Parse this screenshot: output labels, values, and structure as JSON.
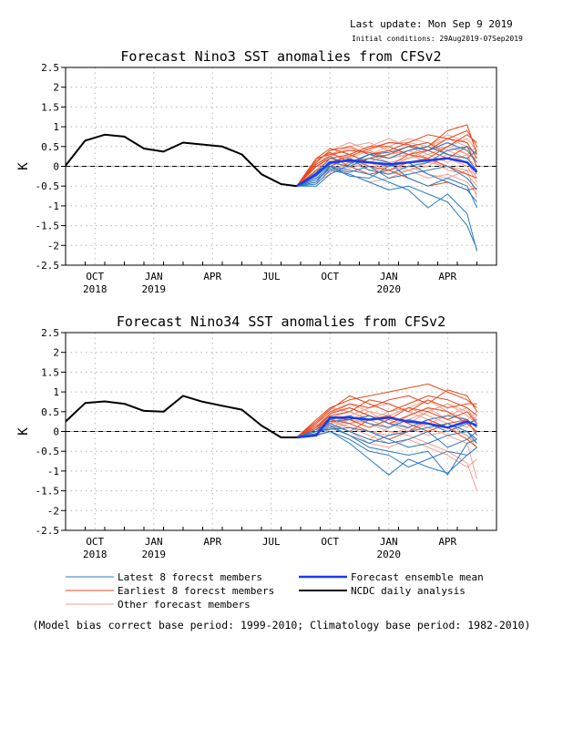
{
  "header": {
    "last_update": "Last update: Mon Sep 9 2019",
    "initial_conditions": "Initial conditions: 29Aug2019-07Sep2019"
  },
  "footer": {
    "note": "(Model bias correct base period: 1999-2010; Climatology base period: 1982-2010)"
  },
  "legend": {
    "items": [
      {
        "label": "Latest 8 forecst members",
        "color": "#2a7bc2"
      },
      {
        "label": "Earliest 8 forecst members",
        "color": "#e8491d"
      },
      {
        "label": "Other forecast members",
        "color": "#f0a090"
      },
      {
        "label": "Forecast ensemble mean",
        "color": "#1b3bf0"
      },
      {
        "label": "NCDC daily analysis",
        "color": "#000000"
      }
    ]
  },
  "chart_data": [
    {
      "type": "line",
      "title": "Forecast Nino3 SST anomalies from CFSv2",
      "ylabel": "K",
      "ylim": [
        -2.5,
        2.5
      ],
      "yticks": [
        "2.5",
        "2",
        "1.5",
        "1",
        "0.5",
        "0",
        "-0.5",
        "-1",
        "-1.5",
        "-2",
        "-2.5"
      ],
      "xlim": [
        0,
        22
      ],
      "xticks": [
        {
          "x": 1.5,
          "label": "OCT",
          "year": "2018"
        },
        {
          "x": 4.5,
          "label": "JAN",
          "year": "2019"
        },
        {
          "x": 7.5,
          "label": "APR",
          "year": ""
        },
        {
          "x": 10.5,
          "label": "JUL",
          "year": ""
        },
        {
          "x": 13.5,
          "label": "OCT",
          "year": ""
        },
        {
          "x": 16.5,
          "label": "JAN",
          "year": "2020"
        },
        {
          "x": 19.5,
          "label": "APR",
          "year": ""
        }
      ],
      "grid": true,
      "analysis": {
        "x": [
          0,
          1,
          2,
          3,
          4,
          5,
          6,
          7,
          8,
          9,
          10,
          11,
          11.8
        ],
        "y": [
          0.02,
          0.65,
          0.8,
          0.75,
          0.45,
          0.37,
          0.6,
          0.55,
          0.5,
          0.3,
          -0.2,
          -0.45,
          -0.5
        ]
      },
      "ensemble_mean": {
        "x": [
          11.8,
          12.8,
          13.5,
          14.5,
          15.5,
          16.5,
          17.5,
          18.5,
          19.5,
          20.5,
          21
        ],
        "y": [
          -0.5,
          -0.2,
          0.1,
          0.15,
          0.1,
          0.05,
          0.1,
          0.15,
          0.2,
          0.1,
          -0.15
        ]
      },
      "latest_members": {
        "x": [
          11.8,
          12.8,
          13.5,
          14.5,
          15.5,
          16.5,
          17.5,
          18.5,
          19.5,
          20.5,
          21
        ],
        "series": [
          [
            -0.5,
            -0.3,
            0.0,
            -0.1,
            -0.2,
            -0.4,
            -0.6,
            -1.05,
            -0.7,
            -1.2,
            -2.15
          ],
          [
            -0.5,
            -0.45,
            -0.1,
            -0.2,
            -0.4,
            -0.6,
            -0.5,
            -0.7,
            -0.9,
            -1.5,
            -2.1
          ],
          [
            -0.5,
            -0.2,
            0.1,
            0.0,
            0.2,
            0.1,
            -0.3,
            -0.5,
            -0.3,
            -0.5,
            -1.05
          ],
          [
            -0.5,
            -0.5,
            -0.2,
            0.05,
            0.3,
            0.2,
            0.4,
            0.5,
            0.3,
            0.2,
            -0.1
          ],
          [
            -0.5,
            -0.25,
            0.05,
            0.2,
            -0.1,
            -0.2,
            0.0,
            0.1,
            0.4,
            0.5,
            0.3
          ],
          [
            -0.5,
            -0.35,
            -0.05,
            -0.15,
            0.0,
            -0.3,
            -0.2,
            -0.1,
            0.0,
            -0.3,
            -0.6
          ],
          [
            -0.5,
            -0.15,
            0.2,
            0.1,
            0.3,
            0.35,
            0.5,
            0.4,
            0.6,
            0.4,
            0.1
          ],
          [
            -0.5,
            -0.4,
            0.0,
            -0.25,
            -0.3,
            0.0,
            0.1,
            -0.2,
            -0.4,
            -0.6,
            -0.9
          ]
        ]
      },
      "earliest_members": {
        "x": [
          11.8,
          12.8,
          13.5,
          14.5,
          15.5,
          16.5,
          17.5,
          18.5,
          19.5,
          20.5,
          21
        ],
        "series": [
          [
            -0.5,
            0.2,
            0.3,
            0.4,
            0.35,
            0.2,
            0.4,
            0.5,
            0.9,
            1.05,
            0.3
          ],
          [
            -0.5,
            0.1,
            0.4,
            0.5,
            0.3,
            0.4,
            0.6,
            0.8,
            0.7,
            0.9,
            0.5
          ],
          [
            -0.5,
            0.0,
            0.2,
            0.3,
            0.1,
            0.0,
            0.3,
            0.4,
            0.2,
            0.5,
            0.0
          ],
          [
            -0.5,
            -0.1,
            0.0,
            0.2,
            0.0,
            -0.1,
            -0.3,
            -0.5,
            -0.4,
            -0.6,
            -0.55
          ],
          [
            -0.5,
            0.15,
            0.35,
            0.1,
            0.2,
            0.3,
            0.5,
            0.6,
            0.3,
            0.2,
            0.4
          ],
          [
            -0.5,
            -0.2,
            0.1,
            0.25,
            0.45,
            0.6,
            0.55,
            0.4,
            0.7,
            0.6,
            0.2
          ],
          [
            -0.5,
            0.05,
            0.25,
            0.0,
            -0.2,
            -0.1,
            0.1,
            0.2,
            0.0,
            -0.2,
            -0.3
          ],
          [
            -0.5,
            0.2,
            0.45,
            0.3,
            0.5,
            0.5,
            0.3,
            0.2,
            0.5,
            0.8,
            0.6
          ]
        ]
      },
      "other_members": {
        "x": [
          11.8,
          12.8,
          13.5,
          14.5,
          15.5,
          16.5,
          17.5,
          18.5,
          19.5,
          20.5,
          21
        ],
        "series": [
          [
            -0.5,
            -0.1,
            0.3,
            0.5,
            0.6,
            0.4,
            0.2,
            0.3,
            0.5,
            0.7,
            0.4
          ],
          [
            -0.5,
            -0.3,
            -0.1,
            0.1,
            0.3,
            0.5,
            0.7,
            0.6,
            0.4,
            0.2,
            0.0
          ],
          [
            -0.5,
            0.0,
            0.2,
            0.1,
            -0.1,
            0.0,
            0.2,
            0.4,
            0.6,
            0.3,
            -0.2
          ],
          [
            -0.5,
            -0.2,
            0.0,
            -0.2,
            -0.4,
            -0.3,
            -0.1,
            0.1,
            0.2,
            0.0,
            -0.4
          ],
          [
            -0.5,
            0.1,
            0.4,
            0.6,
            0.4,
            0.2,
            0.3,
            0.5,
            0.8,
            0.6,
            0.2
          ],
          [
            -0.5,
            -0.4,
            -0.2,
            0.0,
            0.2,
            0.1,
            -0.1,
            -0.3,
            -0.2,
            -0.4,
            -0.7
          ],
          [
            -0.5,
            0.0,
            0.1,
            0.3,
            0.5,
            0.7,
            0.5,
            0.3,
            0.1,
            0.3,
            0.5
          ],
          [
            -0.5,
            -0.1,
            0.15,
            -0.05,
            0.1,
            0.3,
            0.4,
            0.2,
            -0.1,
            -0.2,
            -0.5
          ],
          [
            -0.5,
            -0.25,
            0.05,
            0.2,
            0.0,
            -0.2,
            -0.1,
            0.0,
            0.3,
            0.1,
            -0.3
          ],
          [
            -0.5,
            0.05,
            0.3,
            0.2,
            0.4,
            0.6,
            0.6,
            0.5,
            0.7,
            0.5,
            0.1
          ],
          [
            -0.5,
            -0.3,
            -0.15,
            0.1,
            0.1,
            -0.1,
            0.0,
            -0.2,
            -0.3,
            -0.1,
            -0.2
          ],
          [
            -0.5,
            0.0,
            0.25,
            0.45,
            0.3,
            0.1,
            0.2,
            0.4,
            0.5,
            0.3,
            0.2
          ],
          [
            -0.5,
            -0.15,
            0.1,
            0.0,
            0.2,
            0.4,
            0.3,
            0.1,
            0.0,
            -0.1,
            -0.8
          ]
        ]
      }
    },
    {
      "type": "line",
      "title": "Forecast Nino34 SST anomalies from CFSv2",
      "ylabel": "K",
      "ylim": [
        -2.5,
        2.5
      ],
      "yticks": [
        "2.5",
        "2",
        "1.5",
        "1",
        "0.5",
        "0",
        "-0.5",
        "-1",
        "-1.5",
        "-2",
        "-2.5"
      ],
      "xlim": [
        0,
        22
      ],
      "xticks": [
        {
          "x": 1.5,
          "label": "OCT",
          "year": "2018"
        },
        {
          "x": 4.5,
          "label": "JAN",
          "year": "2019"
        },
        {
          "x": 7.5,
          "label": "APR",
          "year": ""
        },
        {
          "x": 10.5,
          "label": "JUL",
          "year": ""
        },
        {
          "x": 13.5,
          "label": "OCT",
          "year": ""
        },
        {
          "x": 16.5,
          "label": "JAN",
          "year": "2020"
        },
        {
          "x": 19.5,
          "label": "APR",
          "year": ""
        }
      ],
      "grid": true,
      "analysis": {
        "x": [
          0,
          1,
          2,
          3,
          4,
          5,
          6,
          7,
          8,
          9,
          10,
          11,
          11.8
        ],
        "y": [
          0.25,
          0.72,
          0.76,
          0.7,
          0.52,
          0.5,
          0.9,
          0.75,
          0.65,
          0.55,
          0.15,
          -0.15,
          -0.15
        ]
      },
      "ensemble_mean": {
        "x": [
          11.8,
          12.8,
          13.5,
          14.5,
          15.5,
          16.5,
          17.5,
          18.5,
          19.5,
          20.5,
          21
        ],
        "y": [
          -0.15,
          -0.1,
          0.35,
          0.35,
          0.3,
          0.35,
          0.25,
          0.2,
          0.1,
          0.25,
          0.15
        ]
      },
      "latest_members": {
        "x": [
          11.8,
          12.8,
          13.5,
          14.5,
          15.5,
          16.5,
          17.5,
          18.5,
          19.5,
          20.5,
          21
        ],
        "series": [
          [
            -0.15,
            -0.1,
            0.0,
            -0.3,
            -0.7,
            -1.1,
            -0.7,
            -0.9,
            -1.05,
            -0.6,
            -0.4
          ],
          [
            -0.15,
            -0.05,
            0.1,
            -0.1,
            -0.4,
            -0.5,
            -0.6,
            -0.5,
            -1.1,
            -0.3,
            -0.2
          ],
          [
            -0.15,
            0.0,
            0.2,
            0.0,
            -0.2,
            -0.3,
            -0.2,
            0.0,
            -0.4,
            -0.2,
            0.0
          ],
          [
            -0.15,
            -0.1,
            0.3,
            0.4,
            0.2,
            0.1,
            0.3,
            0.2,
            0.0,
            0.2,
            0.3
          ],
          [
            -0.15,
            0.0,
            0.05,
            0.1,
            0.0,
            -0.2,
            -0.4,
            -0.3,
            -0.1,
            0.0,
            -0.3
          ],
          [
            -0.15,
            -0.05,
            0.15,
            -0.1,
            -0.3,
            -0.1,
            0.0,
            0.1,
            0.2,
            0.0,
            -0.2
          ],
          [
            -0.15,
            0.05,
            0.25,
            0.3,
            0.4,
            0.2,
            0.1,
            0.3,
            0.4,
            0.3,
            0.1
          ],
          [
            -0.15,
            -0.1,
            0.0,
            -0.2,
            -0.5,
            -0.6,
            -0.9,
            -0.7,
            -0.5,
            -0.6,
            -0.4
          ]
        ]
      },
      "earliest_members": {
        "x": [
          11.8,
          12.8,
          13.5,
          14.5,
          15.5,
          16.5,
          17.5,
          18.5,
          19.5,
          20.5,
          21
        ],
        "series": [
          [
            -0.15,
            0.3,
            0.6,
            0.8,
            0.9,
            1.0,
            1.1,
            1.2,
            1.0,
            0.8,
            0.6
          ],
          [
            -0.15,
            0.2,
            0.5,
            0.7,
            0.6,
            0.8,
            0.9,
            0.7,
            1.05,
            0.9,
            0.5
          ],
          [
            -0.15,
            0.1,
            0.4,
            0.5,
            0.8,
            0.7,
            0.5,
            0.8,
            0.6,
            0.7,
            0.7
          ],
          [
            -0.15,
            0.0,
            0.3,
            0.2,
            0.0,
            -0.2,
            0.0,
            0.3,
            0.1,
            -0.2,
            -0.4
          ],
          [
            -0.15,
            0.25,
            0.55,
            0.9,
            0.7,
            0.5,
            0.7,
            0.9,
            0.8,
            0.6,
            0.4
          ],
          [
            -0.15,
            0.15,
            0.2,
            0.0,
            0.3,
            0.4,
            0.2,
            0.0,
            0.2,
            0.3,
            -0.1
          ],
          [
            -0.15,
            0.1,
            0.45,
            0.6,
            0.4,
            0.2,
            0.4,
            0.6,
            0.5,
            0.2,
            0.0
          ],
          [
            -0.15,
            0.05,
            0.35,
            0.3,
            0.1,
            0.3,
            0.6,
            0.5,
            0.3,
            0.5,
            0.2
          ]
        ]
      },
      "other_members": {
        "x": [
          11.8,
          12.8,
          13.5,
          14.5,
          15.5,
          16.5,
          17.5,
          18.5,
          19.5,
          20.5,
          21
        ],
        "series": [
          [
            -0.15,
            0.2,
            0.5,
            0.6,
            0.4,
            0.2,
            0.3,
            0.5,
            0.7,
            0.4,
            0.2
          ],
          [
            -0.15,
            0.0,
            0.2,
            0.4,
            0.6,
            0.7,
            0.5,
            0.3,
            0.1,
            0.3,
            0.5
          ],
          [
            -0.15,
            0.1,
            0.3,
            0.1,
            -0.1,
            -0.3,
            -0.2,
            0.0,
            0.2,
            -0.1,
            -0.4
          ],
          [
            -0.15,
            -0.05,
            0.1,
            0.3,
            0.2,
            0.0,
            -0.1,
            -0.3,
            -0.5,
            -0.8,
            -1.5
          ],
          [
            -0.15,
            0.15,
            0.4,
            0.2,
            0.3,
            0.5,
            0.6,
            0.4,
            0.2,
            0.0,
            -0.2
          ],
          [
            -0.15,
            0.0,
            0.15,
            0.0,
            -0.2,
            0.1,
            0.3,
            0.1,
            -0.1,
            -0.3,
            -1.2
          ],
          [
            -0.15,
            0.2,
            0.6,
            0.5,
            0.3,
            0.4,
            0.2,
            0.5,
            0.7,
            0.5,
            0.3
          ],
          [
            -0.15,
            -0.1,
            0.05,
            0.2,
            0.4,
            0.3,
            0.1,
            -0.1,
            0.0,
            0.2,
            0.0
          ],
          [
            -0.15,
            0.1,
            0.35,
            0.5,
            0.3,
            0.1,
            0.4,
            0.6,
            0.3,
            0.1,
            0.4
          ],
          [
            -0.15,
            0.0,
            0.2,
            0.3,
            0.5,
            0.2,
            0.0,
            0.2,
            0.4,
            0.6,
            0.2
          ],
          [
            -0.15,
            0.05,
            0.25,
            0.1,
            0.0,
            -0.1,
            0.1,
            0.3,
            0.1,
            -0.1,
            -0.3
          ],
          [
            -0.15,
            0.15,
            0.45,
            0.7,
            0.5,
            0.4,
            0.6,
            0.8,
            0.5,
            0.3,
            0.1
          ],
          [
            -0.15,
            -0.05,
            0.2,
            0.0,
            -0.3,
            -0.4,
            -0.2,
            -0.4,
            -0.6,
            -0.9,
            -0.7
          ]
        ]
      }
    }
  ]
}
